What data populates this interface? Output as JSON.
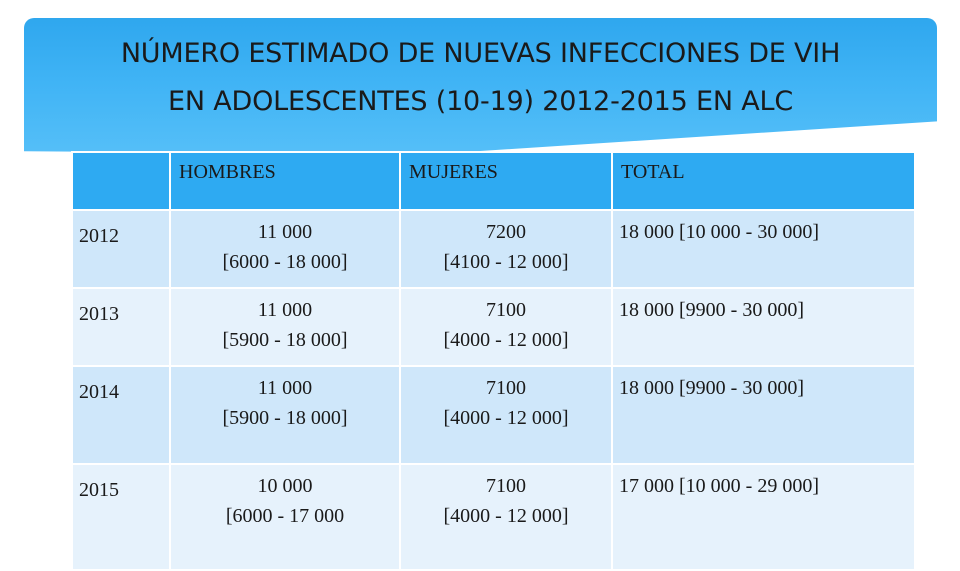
{
  "title": {
    "line1": "NÚMERO ESTIMADO DE NUEVAS INFECCIONES DE VIH",
    "line2": "EN ADOLESCENTES (10-19) 2012-2015 EN ALC"
  },
  "table": {
    "headers": [
      "",
      "HOMBRES",
      "MUJERES",
      "TOTAL"
    ],
    "rows": [
      {
        "year": "2012",
        "hombres": [
          "11 000",
          "[6000 - 18 000]"
        ],
        "mujeres": [
          "7200",
          "[4100 - 12 000]"
        ],
        "total": "18 000 [10 000 - 30 000]"
      },
      {
        "year": "2013",
        "hombres": [
          "11 000",
          "[5900 - 18 000]"
        ],
        "mujeres": [
          "7100",
          "[4000 - 12 000]"
        ],
        "total": "18 000 [9900 - 30 000]"
      },
      {
        "year": "2014",
        "hombres": [
          "11 000",
          "[5900 - 18 000]"
        ],
        "mujeres": [
          "7100",
          "[4000 - 12 000]"
        ],
        "total": "18 000 [9900 - 30 000]"
      },
      {
        "year": "2015",
        "hombres": [
          "10 000",
          "[6000 - 17 000"
        ],
        "mujeres": [
          "7100",
          "[4000 - 12 000]"
        ],
        "total": "17 000 [10 000 - 29 000]"
      }
    ]
  },
  "colors": {
    "banner": "#3fb3f5",
    "header_row": "#2eaaf2",
    "row_odd": "#cfe7fa",
    "row_even": "#e6f2fc"
  }
}
